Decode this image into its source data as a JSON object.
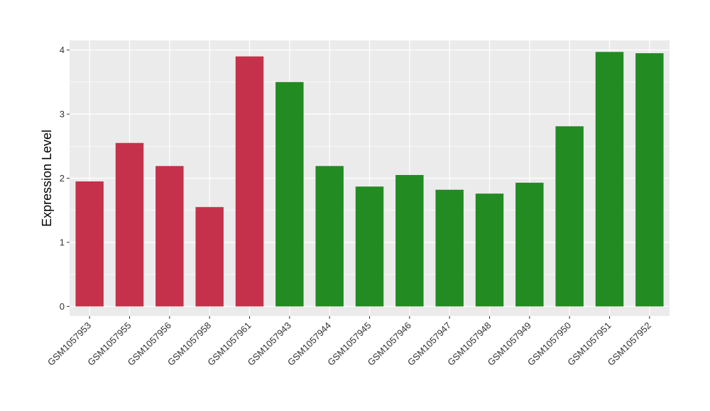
{
  "chart_data": {
    "type": "bar",
    "title": "",
    "xlabel": "",
    "ylabel": "Expression Level",
    "ylim": [
      -0.15,
      4.15
    ],
    "yticks": [
      0,
      1,
      2,
      3,
      4
    ],
    "grid": true,
    "legend": "none",
    "categories": [
      "GSM1057953",
      "GSM1057955",
      "GSM1057956",
      "GSM1057958",
      "GSM1057961",
      "GSM1057943",
      "GSM1057944",
      "GSM1057945",
      "GSM1057946",
      "GSM1057947",
      "GSM1057948",
      "GSM1057949",
      "GSM1057950",
      "GSM1057951",
      "GSM1057952"
    ],
    "values": [
      1.95,
      2.55,
      2.19,
      1.55,
      3.9,
      3.5,
      2.19,
      1.87,
      2.05,
      1.82,
      1.76,
      1.93,
      2.81,
      3.97,
      3.95
    ],
    "groups": [
      0,
      0,
      0,
      0,
      0,
      1,
      1,
      1,
      1,
      1,
      1,
      1,
      1,
      1,
      1
    ],
    "group_colors": [
      "#C5314A",
      "#228B22"
    ],
    "panel_color": "#EBEBEB",
    "grid_color": "#FFFFFF"
  }
}
